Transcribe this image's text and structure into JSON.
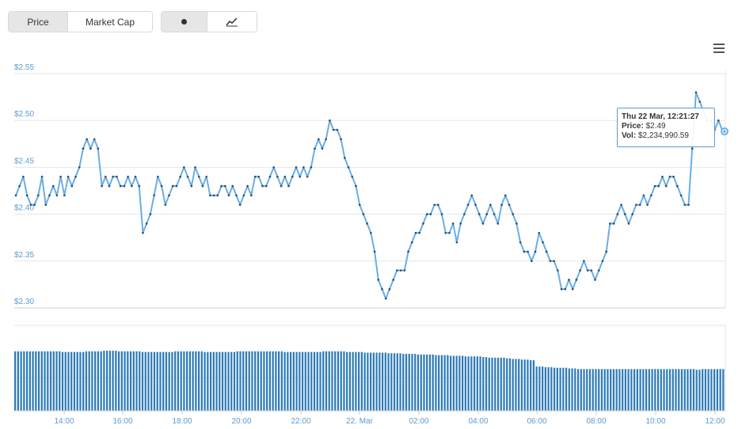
{
  "toolbar": {
    "metric_buttons": [
      {
        "label": "Price",
        "active": true
      },
      {
        "label": "Market Cap",
        "active": false
      }
    ],
    "style_buttons": [
      {
        "icon": "dot-icon",
        "active": true
      },
      {
        "icon": "line-chart-icon",
        "active": false
      }
    ],
    "menu_icon": "hamburger-menu-icon"
  },
  "colors": {
    "line": "#6aaee4",
    "marker": "#2b4a6f",
    "volume": "#2e7bb8",
    "grid": "#e6e6e6",
    "axis_label": "#5b9bd5"
  },
  "chart_data": [
    {
      "type": "line",
      "title": "",
      "ylim": [
        2.3,
        2.55
      ],
      "y_ticks": [
        "$2.30",
        "$2.35",
        "$2.40",
        "$2.45",
        "$2.50",
        "$2.55"
      ],
      "x_tick_labels": [
        "14:00",
        "16:00",
        "18:00",
        "20:00",
        "22:00",
        "22. Mar",
        "02:00",
        "04:00",
        "06:00",
        "08:00",
        "10:00",
        "12:00"
      ],
      "grid": true,
      "series": [
        {
          "values": [
            2.42,
            2.43,
            2.44,
            2.42,
            2.41,
            2.41,
            2.42,
            2.44,
            2.41,
            2.42,
            2.43,
            2.42,
            2.44,
            2.42,
            2.44,
            2.43,
            2.44,
            2.45,
            2.47,
            2.48,
            2.47,
            2.48,
            2.47,
            2.43,
            2.44,
            2.43,
            2.44,
            2.44,
            2.43,
            2.43,
            2.44,
            2.43,
            2.44,
            2.43,
            2.38,
            2.39,
            2.4,
            2.42,
            2.44,
            2.43,
            2.41,
            2.42,
            2.43,
            2.43,
            2.44,
            2.45,
            2.44,
            2.43,
            2.45,
            2.44,
            2.43,
            2.44,
            2.42,
            2.42,
            2.42,
            2.43,
            2.43,
            2.42,
            2.43,
            2.42,
            2.41,
            2.42,
            2.43,
            2.42,
            2.44,
            2.44,
            2.43,
            2.43,
            2.44,
            2.45,
            2.44,
            2.43,
            2.44,
            2.43,
            2.44,
            2.45,
            2.44,
            2.45,
            2.44,
            2.45,
            2.47,
            2.48,
            2.47,
            2.48,
            2.5,
            2.49,
            2.49,
            2.48,
            2.46,
            2.45,
            2.44,
            2.43,
            2.41,
            2.4,
            2.39,
            2.38,
            2.36,
            2.33,
            2.32,
            2.31,
            2.32,
            2.33,
            2.34,
            2.34,
            2.34,
            2.36,
            2.37,
            2.38,
            2.38,
            2.39,
            2.4,
            2.4,
            2.41,
            2.41,
            2.4,
            2.38,
            2.38,
            2.39,
            2.37,
            2.39,
            2.4,
            2.41,
            2.42,
            2.41,
            2.4,
            2.39,
            2.4,
            2.41,
            2.4,
            2.39,
            2.41,
            2.42,
            2.41,
            2.4,
            2.39,
            2.37,
            2.36,
            2.36,
            2.35,
            2.36,
            2.38,
            2.37,
            2.36,
            2.35,
            2.35,
            2.34,
            2.32,
            2.32,
            2.33,
            2.32,
            2.33,
            2.34,
            2.35,
            2.34,
            2.34,
            2.33,
            2.34,
            2.35,
            2.36,
            2.39,
            2.39,
            2.4,
            2.41,
            2.4,
            2.39,
            2.4,
            2.41,
            2.41,
            2.42,
            2.41,
            2.42,
            2.43,
            2.43,
            2.44,
            2.43,
            2.44,
            2.44,
            2.43,
            2.42,
            2.41,
            2.41,
            2.47,
            2.53,
            2.52,
            2.51,
            2.5,
            2.5,
            2.49,
            2.5,
            2.49
          ],
          "markers": true
        }
      ],
      "tooltip": {
        "date": "Thu 22 Mar, 12:21:27",
        "price_label": "Price:",
        "price_value": "$2.49",
        "vol_label": "Vol:",
        "vol_value": "$2,234,990.59"
      }
    },
    {
      "type": "bar",
      "title": "",
      "series": [
        {
          "values": [
            0.94,
            0.94,
            0.94,
            0.94,
            0.94,
            0.94,
            0.93,
            0.93,
            0.93,
            0.94,
            0.94,
            0.95,
            0.95,
            0.94,
            0.94,
            0.94,
            0.93,
            0.93,
            0.93,
            0.93,
            0.94,
            0.94,
            0.94,
            0.94,
            0.93,
            0.93,
            0.93,
            0.93,
            0.94,
            0.94,
            0.94,
            0.94,
            0.94,
            0.94,
            0.93,
            0.93,
            0.93,
            0.93,
            0.93,
            0.94,
            0.94,
            0.94,
            0.93,
            0.93,
            0.92,
            0.92,
            0.92,
            0.91,
            0.91,
            0.9,
            0.9,
            0.89,
            0.89,
            0.88,
            0.88,
            0.87,
            0.87,
            0.86,
            0.86,
            0.85,
            0.84,
            0.84,
            0.83,
            0.82,
            0.81,
            0.8,
            0.7,
            0.69,
            0.68,
            0.68,
            0.67,
            0.66,
            0.66,
            0.66,
            0.66,
            0.66,
            0.66,
            0.66,
            0.66,
            0.66,
            0.66,
            0.66,
            0.66,
            0.66,
            0.66,
            0.66,
            0.65,
            0.66,
            0.66,
            0.66
          ]
        }
      ]
    }
  ]
}
